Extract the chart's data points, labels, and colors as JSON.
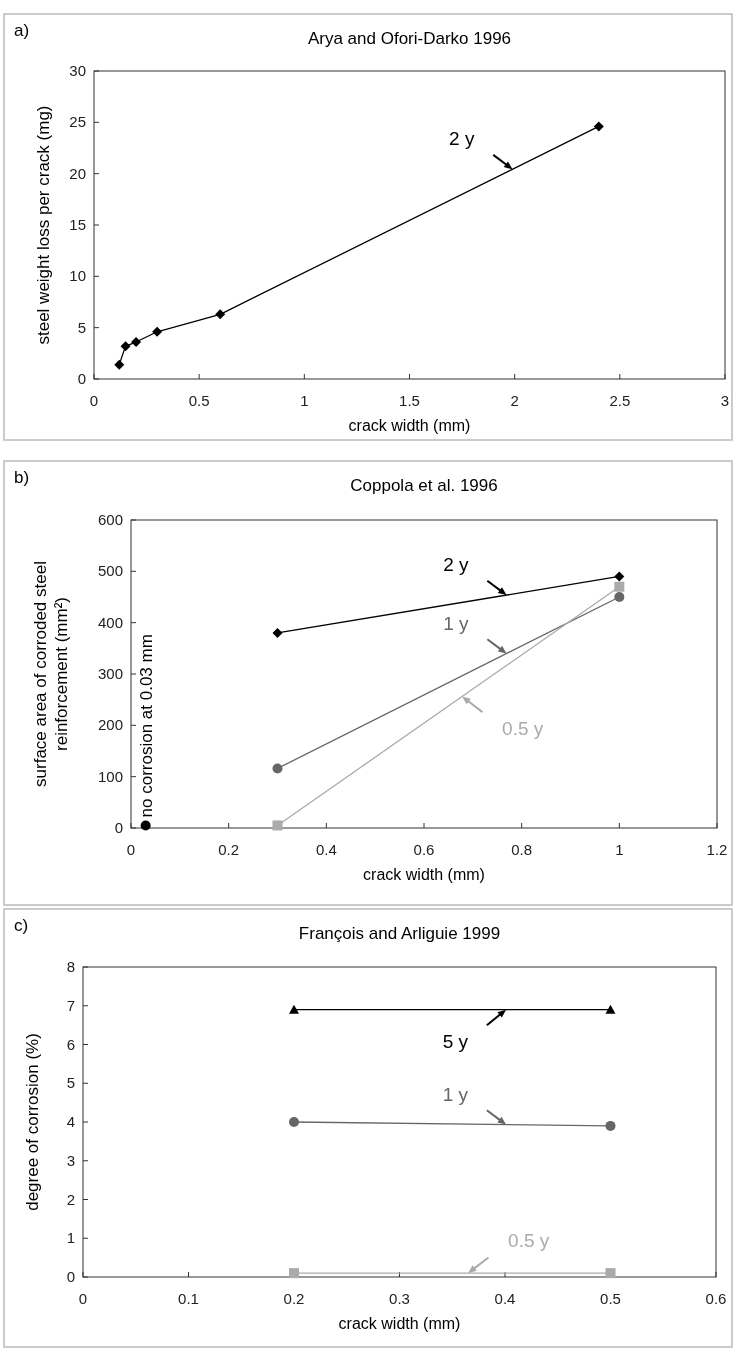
{
  "chart_data": [
    {
      "type": "line",
      "title": "Arya and Ofori-Darko 1996",
      "xlabel": "crack width (mm)",
      "ylabel": "steel weight loss per crack (mg)",
      "annotations": [
        "a)"
      ],
      "xlim": [
        0,
        3
      ],
      "xticks": [
        0,
        0.5,
        1,
        1.5,
        2,
        2.5,
        3
      ],
      "ylim": [
        0,
        30
      ],
      "yticks": [
        0,
        5,
        10,
        15,
        20,
        25,
        30
      ],
      "grid": false,
      "legend": false,
      "series": [
        {
          "name": "2 y",
          "color": "#000000",
          "marker": "diamond",
          "x": [
            0.12,
            0.15,
            0.2,
            0.3,
            0.6,
            2.4
          ],
          "values": [
            1.4,
            3.2,
            3.6,
            4.6,
            6.3,
            24.6
          ]
        }
      ]
    },
    {
      "type": "line",
      "title": "Coppola et al. 1996",
      "xlabel": "crack width (mm)",
      "ylabel": "surface area of corroded steel reinforcement (mm²)",
      "annotations": [
        "b)",
        {
          "text": "no corrosion at 0.03 mm",
          "x": 0.03,
          "y": 5
        }
      ],
      "xlim": [
        0,
        1.2
      ],
      "xticks": [
        0,
        0.2,
        0.4,
        0.6,
        0.8,
        1,
        1.2
      ],
      "ylim": [
        0,
        600
      ],
      "yticks": [
        0,
        100,
        200,
        300,
        400,
        500,
        600
      ],
      "grid": false,
      "legend": false,
      "series": [
        {
          "name": "2 y",
          "color": "#000000",
          "marker": "diamond",
          "x": [
            0.3,
            1
          ],
          "values": [
            380,
            490
          ]
        },
        {
          "name": "1 y",
          "color": "#666666",
          "marker": "circle",
          "x": [
            0.3,
            1
          ],
          "values": [
            116,
            450
          ]
        },
        {
          "name": "0.5 y",
          "color": "#aaaaaa",
          "marker": "square",
          "x": [
            0.3,
            1
          ],
          "values": [
            5,
            470
          ]
        },
        {
          "type": "scatter",
          "color": "#000000",
          "marker": "circle",
          "x": [
            0.03
          ],
          "values": [
            5
          ]
        }
      ]
    },
    {
      "type": "line",
      "title": "François and Arliguie 1999",
      "xlabel": "crack width (mm)",
      "ylabel": "degree of corrosion (%)",
      "annotations": [
        "c)"
      ],
      "xlim": [
        0,
        0.6
      ],
      "xticks": [
        0,
        0.1,
        0.2,
        0.3,
        0.4,
        0.5,
        0.6
      ],
      "ylim": [
        0,
        8
      ],
      "yticks": [
        0,
        1,
        2,
        3,
        4,
        5,
        6,
        7,
        8
      ],
      "grid": false,
      "legend": false,
      "series": [
        {
          "name": "5 y",
          "color": "#000000",
          "marker": "triangle",
          "x": [
            0.2,
            0.5
          ],
          "values": [
            6.9,
            6.9
          ]
        },
        {
          "name": "1 y",
          "color": "#666666",
          "marker": "circle",
          "x": [
            0.2,
            0.5
          ],
          "values": [
            4.0,
            3.9
          ]
        },
        {
          "name": "0.5 y",
          "color": "#aaaaaa",
          "marker": "square",
          "x": [
            0.2,
            0.5
          ],
          "values": [
            0.1,
            0.1
          ]
        }
      ]
    }
  ]
}
